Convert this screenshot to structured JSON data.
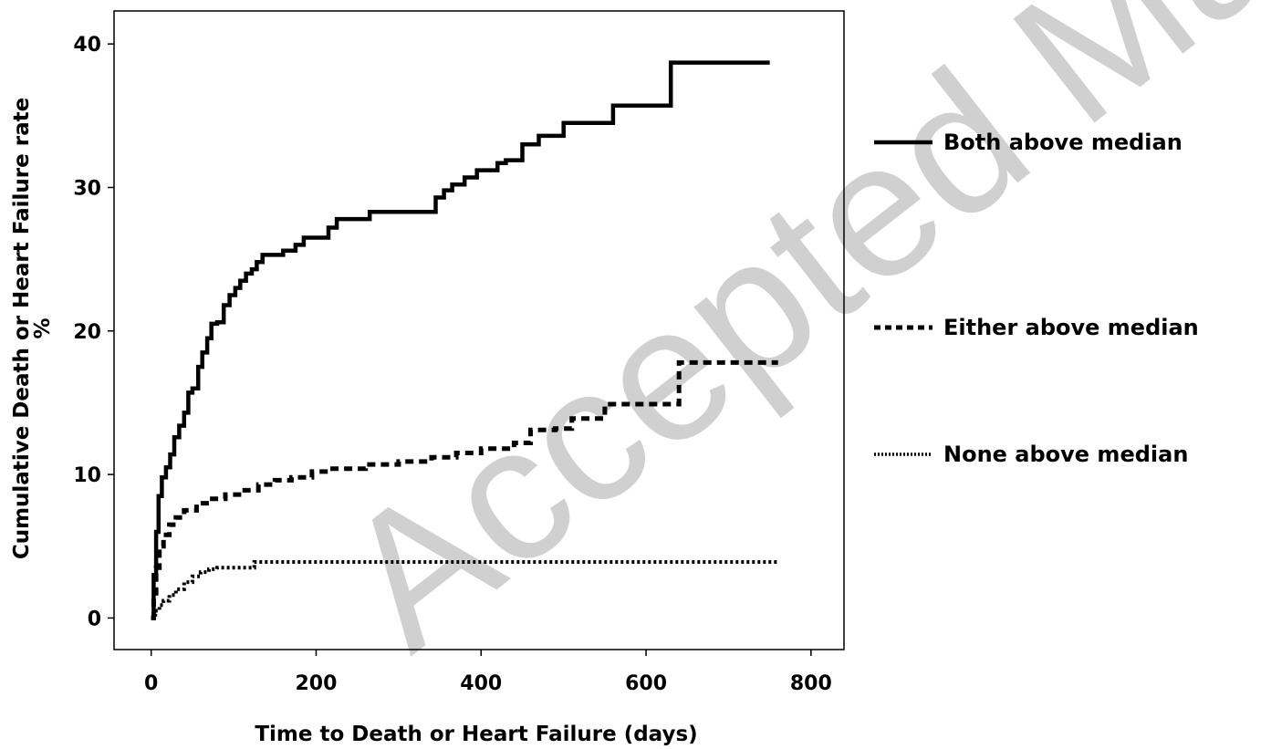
{
  "chart_data": {
    "type": "line",
    "xlabel": "Time to Death or Heart Failure (days)",
    "ylabel_line1": "Cumulative Death or Heart Failure rate",
    "ylabel_line2": "%",
    "xlim": [
      -45,
      840
    ],
    "ylim": [
      -2.2,
      42.3
    ],
    "xticks": [
      0,
      200,
      400,
      600,
      800
    ],
    "yticks": [
      0,
      10,
      20,
      30,
      40
    ],
    "grid": false,
    "legend_placement": "right",
    "watermark": "Accepted Manuscript",
    "series": [
      {
        "name": "Both above median",
        "style": "solid",
        "color": "#000000",
        "x": [
          0,
          3,
          6,
          9,
          13,
          18,
          23,
          28,
          34,
          40,
          45,
          50,
          57,
          62,
          68,
          73,
          80,
          88,
          95,
          102,
          108,
          115,
          122,
          128,
          135,
          145,
          160,
          175,
          185,
          200,
          215,
          225,
          245,
          265,
          300,
          335,
          345,
          355,
          365,
          380,
          395,
          410,
          420,
          430,
          450,
          460,
          470,
          500,
          520,
          550,
          560,
          580,
          620,
          630,
          640,
          700,
          750
        ],
        "y": [
          0,
          3,
          6,
          8.5,
          9.8,
          10.5,
          11.4,
          12.6,
          13.4,
          14.3,
          15.7,
          16.0,
          17.5,
          18.5,
          19.5,
          20.5,
          20.6,
          21.8,
          22.5,
          23.0,
          23.5,
          24.0,
          24.3,
          24.8,
          25.3,
          25.3,
          25.6,
          26.0,
          26.5,
          26.5,
          27.2,
          27.8,
          27.8,
          28.3,
          28.3,
          28.3,
          29.3,
          29.8,
          30.2,
          30.7,
          31.2,
          31.2,
          31.7,
          31.9,
          33.0,
          33.0,
          33.6,
          34.5,
          34.5,
          34.5,
          35.7,
          35.7,
          35.7,
          38.7,
          38.7,
          38.7,
          38.7
        ]
      },
      {
        "name": "Either above median",
        "style": "dashed",
        "color": "#000000",
        "x": [
          0,
          3,
          6,
          10,
          15,
          22,
          30,
          40,
          55,
          70,
          90,
          110,
          130,
          150,
          170,
          195,
          220,
          260,
          300,
          340,
          370,
          400,
          440,
          460,
          490,
          510,
          550,
          600,
          630,
          640,
          700,
          760
        ],
        "y": [
          0,
          1.5,
          3.5,
          5.0,
          5.8,
          6.5,
          7.0,
          7.5,
          8.0,
          8.3,
          8.6,
          8.9,
          9.3,
          9.6,
          9.8,
          10.2,
          10.4,
          10.7,
          10.9,
          11.2,
          11.5,
          11.8,
          12.2,
          13.1,
          13.2,
          13.9,
          14.9,
          14.9,
          14.9,
          17.8,
          17.8,
          17.8
        ]
      },
      {
        "name": "None above median",
        "style": "dotted",
        "color": "#000000",
        "x": [
          0,
          5,
          10,
          15,
          22,
          30,
          40,
          50,
          60,
          70,
          80,
          95,
          115,
          125,
          140,
          200,
          300,
          400,
          500,
          600,
          700,
          760
        ],
        "y": [
          0,
          0.5,
          0.9,
          1.2,
          1.6,
          2.0,
          2.5,
          2.9,
          3.2,
          3.4,
          3.5,
          3.5,
          3.5,
          3.9,
          3.9,
          3.9,
          3.9,
          3.9,
          3.9,
          3.9,
          3.9,
          3.9
        ]
      }
    ]
  }
}
